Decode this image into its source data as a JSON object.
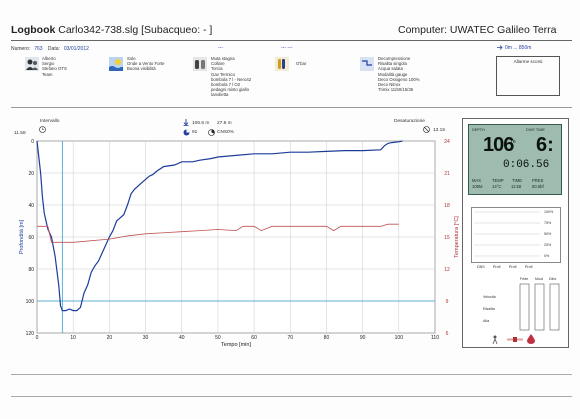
{
  "header": {
    "logbook_label": "Logbook",
    "file_name": "Carlo342-738.slg",
    "diver_label": "[Subacqueo:  - ]",
    "computer": "Computer: UWATEC Galileo Terra"
  },
  "meta": {
    "number_label": "Numero:",
    "number_value": "763",
    "date_label": "Data:",
    "date_value": "03/01/2012",
    "dashes_a": "---",
    "dashes_b": "---  ---",
    "range": "0m ... 850m"
  },
  "alarm_box": {
    "label": "Allarme scorsi"
  },
  "info_columns": [
    {
      "text": "Alberto\nSergio\nStefano OTS\nTeam"
    },
    {
      "text": "Sole\nOnde a Vento Forte\nBuona visibilità"
    },
    {
      "text": "Muta stagna\nCollare\nTorcia\nGav Termico\nbombola 7 l - Nero42\nbombola 7 l O2\npedagni misto giallo\ntanolietta"
    },
    {
      "text": "O'bar"
    },
    {
      "text": "Decompressione\nRisalita singola\nAcqua salata\nModalità gauge\nDeco Ossigeno 100%\nDeco Nitrox\nTrimix 11/50/15/35"
    }
  ],
  "stats": {
    "interval_label": "Intervallo",
    "start_time": "11.58",
    "max_depth": "106.6 m",
    "avg_depth": "27.9 m",
    "cns_label": "CNS",
    "cns_value": "0%",
    "gas_value": "91",
    "desat_label": "Desaturazione",
    "end_time": "13.15"
  },
  "chart_data": {
    "type": "line",
    "xlabel": "Tempo [min]",
    "ylabel": "Profondità [m]",
    "ylabel_right": "Temperatura [°C]",
    "xlim": [
      0,
      110
    ],
    "ylim": [
      0,
      120
    ],
    "ylim_right": [
      6,
      24
    ],
    "x_ticks": [
      0,
      10,
      20,
      30,
      40,
      50,
      60,
      70,
      80,
      90,
      100,
      110
    ],
    "y_ticks": [
      0,
      20,
      40,
      60,
      80,
      100,
      120
    ],
    "y_ticks_right": [
      6,
      9,
      12,
      15,
      18,
      21,
      24
    ],
    "grid": true,
    "marker_time": 7,
    "marker_depth": 100,
    "series": [
      {
        "values": [
          [
            0,
            0
          ],
          [
            0.5,
            10
          ],
          [
            1,
            20
          ],
          [
            1.5,
            35
          ],
          [
            2,
            45
          ],
          [
            3,
            55
          ],
          [
            4,
            60
          ],
          [
            5,
            72
          ],
          [
            6,
            90
          ],
          [
            6.5,
            103
          ],
          [
            7,
            106
          ],
          [
            8,
            106
          ],
          [
            9,
            105
          ],
          [
            10,
            106
          ],
          [
            11,
            106
          ],
          [
            12,
            104
          ],
          [
            13,
            95
          ],
          [
            14,
            90
          ],
          [
            15,
            82
          ],
          [
            16,
            78
          ],
          [
            17,
            75
          ],
          [
            18,
            70
          ],
          [
            19,
            65
          ],
          [
            20,
            60
          ],
          [
            21,
            56
          ],
          [
            22,
            50
          ],
          [
            23,
            48
          ],
          [
            24,
            46
          ],
          [
            25,
            40
          ],
          [
            26,
            33
          ],
          [
            27,
            30
          ],
          [
            28,
            28
          ],
          [
            29,
            26
          ],
          [
            30,
            24
          ],
          [
            31,
            22
          ],
          [
            32,
            21
          ],
          [
            33,
            19
          ],
          [
            35,
            16
          ],
          [
            38,
            15
          ],
          [
            40,
            13
          ],
          [
            43,
            13
          ],
          [
            45,
            12
          ],
          [
            48,
            11
          ],
          [
            50,
            10
          ],
          [
            55,
            9
          ],
          [
            60,
            8
          ],
          [
            65,
            8
          ],
          [
            70,
            7
          ],
          [
            75,
            7
          ],
          [
            80,
            6.5
          ],
          [
            85,
            6
          ],
          [
            90,
            6
          ],
          [
            95,
            5.5
          ],
          [
            96,
            3
          ],
          [
            97,
            1.5
          ],
          [
            98,
            1
          ],
          [
            100,
            0.5
          ],
          [
            101,
            0
          ]
        ]
      },
      {
        "axis": "right",
        "values": [
          [
            0,
            16
          ],
          [
            3,
            16
          ],
          [
            4,
            14.5
          ],
          [
            10,
            14.5
          ],
          [
            20,
            14.8
          ],
          [
            25,
            15.1
          ],
          [
            30,
            15.3
          ],
          [
            35,
            15.4
          ],
          [
            40,
            15.5
          ],
          [
            45,
            15.6
          ],
          [
            50,
            15.7
          ],
          [
            55,
            15.6
          ],
          [
            57,
            16
          ],
          [
            60,
            16
          ],
          [
            62,
            15.6
          ],
          [
            65,
            16
          ],
          [
            70,
            16
          ],
          [
            75,
            16
          ],
          [
            80,
            16
          ],
          [
            82,
            15.6
          ],
          [
            84,
            16
          ],
          [
            90,
            16
          ],
          [
            95,
            16
          ],
          [
            97,
            16.2
          ],
          [
            100,
            16.2
          ]
        ]
      }
    ]
  },
  "computer_display": {
    "depth_label": "DEPTH",
    "depth_value": "106",
    "depth_unit": "m",
    "no_stop_label": "DIVE TIME",
    "no_stop_value": "6:",
    "dive_time": "0:06.56",
    "max_label": "MAX",
    "max_value": "106M",
    "temp_label": "TEMP",
    "temp_value": "14°C",
    "time_label": "TIME",
    "time_value": "11:58",
    "press_label": "PRES",
    "press_value": "60.0bf",
    "tissue_pct": [
      "100%",
      "75%",
      "50%",
      "25%",
      "0%"
    ],
    "tissue_labels": [
      "DNS",
      "Profi",
      "Profi",
      "Profi"
    ],
    "ascent_labels": [
      "Velocità",
      "Risalita",
      "Alta"
    ],
    "ascent_cols": [
      "Fede",
      "Muot",
      "Difor"
    ]
  }
}
